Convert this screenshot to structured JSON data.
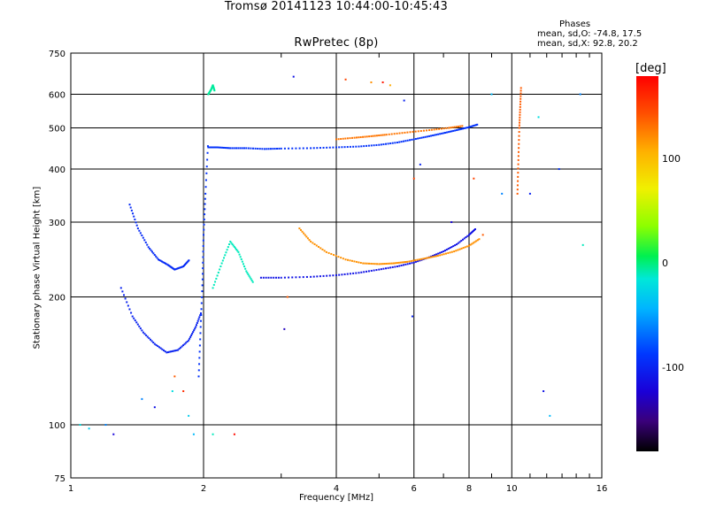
{
  "chart_data": {
    "type": "scatter",
    "title": "Tromsø 20141123 10:44:00-10:45:43",
    "subtitle": "RwPretec (8p)",
    "xlabel": "Frequency [MHz]",
    "ylabel": "Stationary phase Virtual Height [km]",
    "x_scale": "log",
    "y_scale": "log",
    "xlim": [
      1,
      16
    ],
    "ylim": [
      75,
      750
    ],
    "x_ticks": [
      1,
      2,
      4,
      6,
      8,
      10,
      16
    ],
    "y_ticks": [
      75,
      100,
      200,
      300,
      400,
      500,
      600,
      750
    ],
    "grid": true,
    "stats": {
      "heading": "Phases",
      "line_o": "mean, sd,O: -74.8, 17.5",
      "line_x": "mean, sd,X:  92.8, 20.2"
    },
    "colorbar": {
      "unit": "[deg]",
      "ticks": [
        "100",
        "0",
        "-100"
      ],
      "tick_values": [
        100,
        0,
        -100
      ],
      "range": [
        -180,
        180
      ],
      "placement": "right"
    },
    "traces": [
      {
        "x": [
          1.36,
          1.42,
          1.5,
          1.58,
          1.66,
          1.72,
          1.8,
          1.86
        ],
        "y": [
          330,
          290,
          262,
          245,
          238,
          232,
          236,
          245
        ],
        "phase": -95
      },
      {
        "x": [
          1.3,
          1.38,
          1.46,
          1.55,
          1.65,
          1.75,
          1.85,
          1.92,
          1.98
        ],
        "y": [
          210,
          180,
          165,
          155,
          148,
          150,
          158,
          170,
          185
        ],
        "phase": -100
      },
      {
        "x": [
          1.95,
          1.97,
          1.99,
          2.0,
          2.02,
          2.05
        ],
        "y": [
          130,
          170,
          220,
          280,
          350,
          470
        ],
        "phase": -90
      },
      {
        "x": [
          2.05,
          2.15,
          2.3,
          2.5,
          2.75,
          3.0,
          3.5,
          4.0,
          4.5,
          5.0,
          5.5,
          6.0,
          6.5,
          7.0,
          7.5,
          8.0,
          8.4
        ],
        "y": [
          450,
          450,
          448,
          448,
          446,
          447,
          448,
          450,
          452,
          456,
          462,
          470,
          478,
          486,
          494,
          502,
          510
        ],
        "phase": -90
      },
      {
        "x": [
          2.7,
          3.0,
          3.5,
          4.0,
          4.5,
          5.0,
          5.5,
          6.0,
          6.5,
          7.0,
          7.5,
          8.0,
          8.3
        ],
        "y": [
          222,
          222,
          223,
          225,
          228,
          232,
          236,
          241,
          248,
          256,
          266,
          280,
          290
        ],
        "phase": -110
      },
      {
        "x": [
          3.3,
          3.5,
          3.8,
          4.2,
          4.6,
          5.0,
          5.4,
          5.8,
          6.3,
          6.8,
          7.4,
          8.0,
          8.5
        ],
        "y": [
          290,
          270,
          255,
          245,
          240,
          239,
          240,
          242,
          246,
          250,
          256,
          264,
          275
        ],
        "phase": 120
      },
      {
        "x": [
          4.0,
          4.4,
          4.8,
          5.2,
          5.8,
          6.5,
          7.2,
          7.8
        ],
        "y": [
          470,
          474,
          478,
          482,
          488,
          494,
          500,
          506
        ],
        "phase": 130
      },
      {
        "x": [
          10.3,
          10.35,
          10.4,
          10.45,
          10.5
        ],
        "y": [
          350,
          420,
          500,
          560,
          630
        ],
        "phase": 140
      },
      {
        "x": [
          2.1,
          2.2,
          2.3,
          2.4,
          2.5,
          2.6
        ],
        "y": [
          210,
          240,
          270,
          255,
          230,
          215
        ],
        "phase": -10
      },
      {
        "x": [
          2.05,
          2.08,
          2.1,
          2.12
        ],
        "y": [
          600,
          615,
          630,
          610
        ],
        "phase": -5
      }
    ],
    "points": [
      {
        "x": 1.05,
        "y": 100,
        "phase": -20
      },
      {
        "x": 1.1,
        "y": 98,
        "phase": -30
      },
      {
        "x": 1.2,
        "y": 100,
        "phase": -60
      },
      {
        "x": 1.25,
        "y": 95,
        "phase": -120
      },
      {
        "x": 1.45,
        "y": 115,
        "phase": -60
      },
      {
        "x": 1.55,
        "y": 110,
        "phase": -110
      },
      {
        "x": 1.7,
        "y": 120,
        "phase": -20
      },
      {
        "x": 1.72,
        "y": 130,
        "phase": 140
      },
      {
        "x": 1.8,
        "y": 120,
        "phase": 160
      },
      {
        "x": 1.85,
        "y": 105,
        "phase": -30
      },
      {
        "x": 1.9,
        "y": 95,
        "phase": -40
      },
      {
        "x": 2.1,
        "y": 95,
        "phase": -10
      },
      {
        "x": 2.35,
        "y": 95,
        "phase": 175
      },
      {
        "x": 3.1,
        "y": 200,
        "phase": 140
      },
      {
        "x": 3.05,
        "y": 168,
        "phase": -130
      },
      {
        "x": 3.2,
        "y": 660,
        "phase": -110
      },
      {
        "x": 4.2,
        "y": 650,
        "phase": 150
      },
      {
        "x": 4.8,
        "y": 640,
        "phase": 120
      },
      {
        "x": 5.1,
        "y": 640,
        "phase": 170
      },
      {
        "x": 5.3,
        "y": 630,
        "phase": 110
      },
      {
        "x": 5.7,
        "y": 580,
        "phase": -100
      },
      {
        "x": 5.95,
        "y": 180,
        "phase": -100
      },
      {
        "x": 6.0,
        "y": 380,
        "phase": 150
      },
      {
        "x": 6.2,
        "y": 410,
        "phase": -100
      },
      {
        "x": 7.3,
        "y": 300,
        "phase": -120
      },
      {
        "x": 8.2,
        "y": 380,
        "phase": 150
      },
      {
        "x": 9.5,
        "y": 350,
        "phase": -60
      },
      {
        "x": 9.0,
        "y": 600,
        "phase": -40
      },
      {
        "x": 11.8,
        "y": 120,
        "phase": -110
      },
      {
        "x": 12.2,
        "y": 105,
        "phase": -40
      },
      {
        "x": 12.8,
        "y": 400,
        "phase": -90
      },
      {
        "x": 11.0,
        "y": 350,
        "phase": -100
      },
      {
        "x": 14.5,
        "y": 265,
        "phase": -10
      },
      {
        "x": 14.3,
        "y": 600,
        "phase": -60
      },
      {
        "x": 11.5,
        "y": 530,
        "phase": -20
      },
      {
        "x": 8.6,
        "y": 280,
        "phase": 140
      }
    ]
  }
}
